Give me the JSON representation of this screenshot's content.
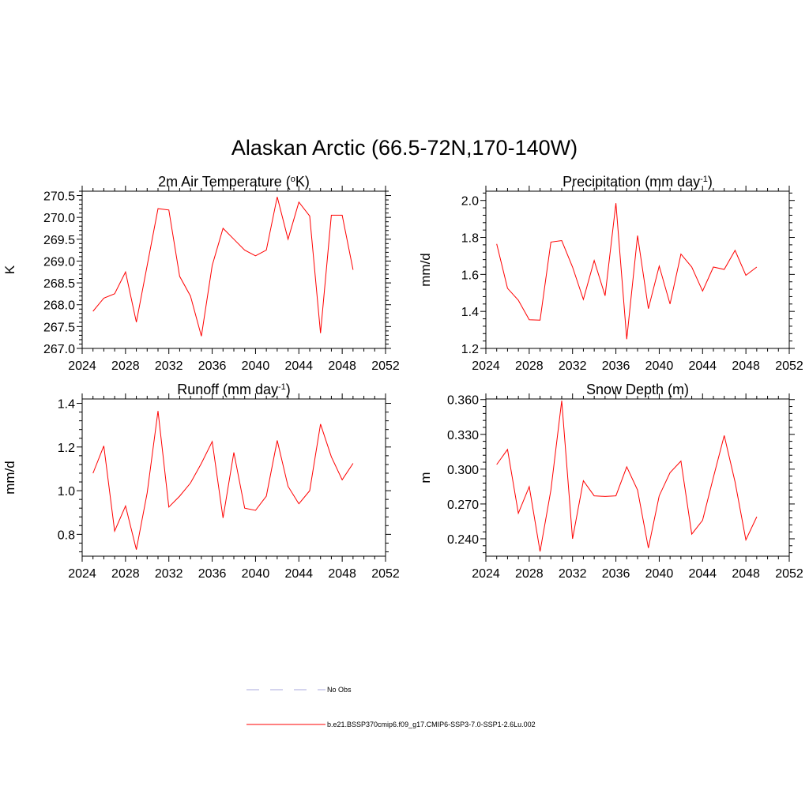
{
  "title": "Alaskan Arctic (66.5-72N,170-140W)",
  "colors": {
    "series": "#ff0000",
    "no_obs": "#aaaadd"
  },
  "legend": {
    "no_obs_label": "No Obs",
    "series_label": "b.e21.BSSP370cmip6.f09_g17.CMIP6-SSP3-7.0-SSP1-2.6Lu.002"
  },
  "chart_data": [
    {
      "type": "line",
      "title": "2m Air Temperature (",
      "title_sup1": "o",
      "title_tail": "K)",
      "title_sup2": "",
      "title_end": "",
      "ylabel": "K",
      "xlim": [
        2024,
        2052
      ],
      "ylim": [
        267.0,
        270.6
      ],
      "xticks": [
        "2024",
        "2028",
        "2032",
        "2036",
        "2040",
        "2044",
        "2048",
        "2052"
      ],
      "yticks": [
        "267.0",
        "267.5",
        "268.0",
        "268.5",
        "269.0",
        "269.5",
        "270.0",
        "270.5"
      ],
      "x": [
        2025,
        2026,
        2027,
        2028,
        2029,
        2030,
        2031,
        2032,
        2033,
        2034,
        2035,
        2036,
        2037,
        2038,
        2039,
        2040,
        2041,
        2042,
        2043,
        2044,
        2045,
        2046,
        2047,
        2048,
        2049
      ],
      "y": [
        267.85,
        268.15,
        268.25,
        268.75,
        267.6,
        268.9,
        270.2,
        270.17,
        268.65,
        268.2,
        267.28,
        268.9,
        269.75,
        269.5,
        269.25,
        269.12,
        269.25,
        270.47,
        269.5,
        270.35,
        270.03,
        267.35,
        270.05,
        270.05,
        268.8
      ]
    },
    {
      "type": "line",
      "title": "Precipitation (mm day",
      "title_sup1": "",
      "title_tail": "",
      "title_sup2": "-1",
      "title_end": ")",
      "ylabel": "mm/d",
      "xlim": [
        2024,
        2052
      ],
      "ylim": [
        1.2,
        2.05
      ],
      "xticks": [
        "2024",
        "2028",
        "2032",
        "2036",
        "2040",
        "2044",
        "2048",
        "2052"
      ],
      "yticks": [
        "1.2",
        "1.4",
        "1.6",
        "1.8",
        "2.0"
      ],
      "x": [
        2025,
        2026,
        2027,
        2028,
        2029,
        2030,
        2031,
        2032,
        2033,
        2034,
        2035,
        2036,
        2037,
        2038,
        2039,
        2040,
        2041,
        2042,
        2043,
        2044,
        2045,
        2046,
        2047,
        2048,
        2049
      ],
      "y": [
        1.765,
        1.525,
        1.46,
        1.355,
        1.353,
        1.775,
        1.783,
        1.64,
        1.465,
        1.675,
        1.485,
        1.985,
        1.25,
        1.81,
        1.415,
        1.645,
        1.44,
        1.71,
        1.64,
        1.51,
        1.64,
        1.627,
        1.73,
        1.595,
        1.64
      ]
    },
    {
      "type": "line",
      "title": "Runoff (mm day",
      "title_sup1": "",
      "title_tail": "",
      "title_sup2": "-1",
      "title_end": ")",
      "ylabel": "mm/d",
      "xlim": [
        2024,
        2052
      ],
      "ylim": [
        0.7,
        1.42
      ],
      "xticks": [
        "2024",
        "2028",
        "2032",
        "2036",
        "2040",
        "2044",
        "2048",
        "2052"
      ],
      "yticks": [
        "0.8",
        "1.0",
        "1.2",
        "1.4"
      ],
      "x": [
        2025,
        2026,
        2027,
        2028,
        2029,
        2030,
        2031,
        2032,
        2033,
        2034,
        2035,
        2036,
        2037,
        2038,
        2039,
        2040,
        2041,
        2042,
        2043,
        2044,
        2045,
        2046,
        2047,
        2048,
        2049
      ],
      "y": [
        1.08,
        1.205,
        0.815,
        0.93,
        0.73,
        0.99,
        1.365,
        0.925,
        0.975,
        1.035,
        1.125,
        1.225,
        0.875,
        1.175,
        0.92,
        0.91,
        0.975,
        1.23,
        1.02,
        0.94,
        1.0,
        1.305,
        1.155,
        1.05,
        1.125
      ]
    },
    {
      "type": "line",
      "title": "Snow Depth (m)",
      "title_sup1": "",
      "title_tail": "",
      "title_sup2": "",
      "title_end": "",
      "ylabel": "m",
      "xlim": [
        2024,
        2052
      ],
      "ylim": [
        0.225,
        0.3605
      ],
      "xticks": [
        "2024",
        "2028",
        "2032",
        "2036",
        "2040",
        "2044",
        "2048",
        "2052"
      ],
      "yticks": [
        "0.240",
        "0.270",
        "0.300",
        "0.330",
        "0.360"
      ],
      "x": [
        2025,
        2026,
        2027,
        2028,
        2029,
        2030,
        2031,
        2032,
        2033,
        2034,
        2035,
        2036,
        2037,
        2038,
        2039,
        2040,
        2041,
        2042,
        2043,
        2044,
        2045,
        2046,
        2047,
        2048,
        2049
      ],
      "y": [
        0.304,
        0.317,
        0.262,
        0.285,
        0.229,
        0.282,
        0.359,
        0.24,
        0.29,
        0.277,
        0.2765,
        0.277,
        0.302,
        0.282,
        0.232,
        0.277,
        0.297,
        0.307,
        0.244,
        0.256,
        0.293,
        0.329,
        0.289,
        0.239,
        0.259
      ]
    }
  ]
}
